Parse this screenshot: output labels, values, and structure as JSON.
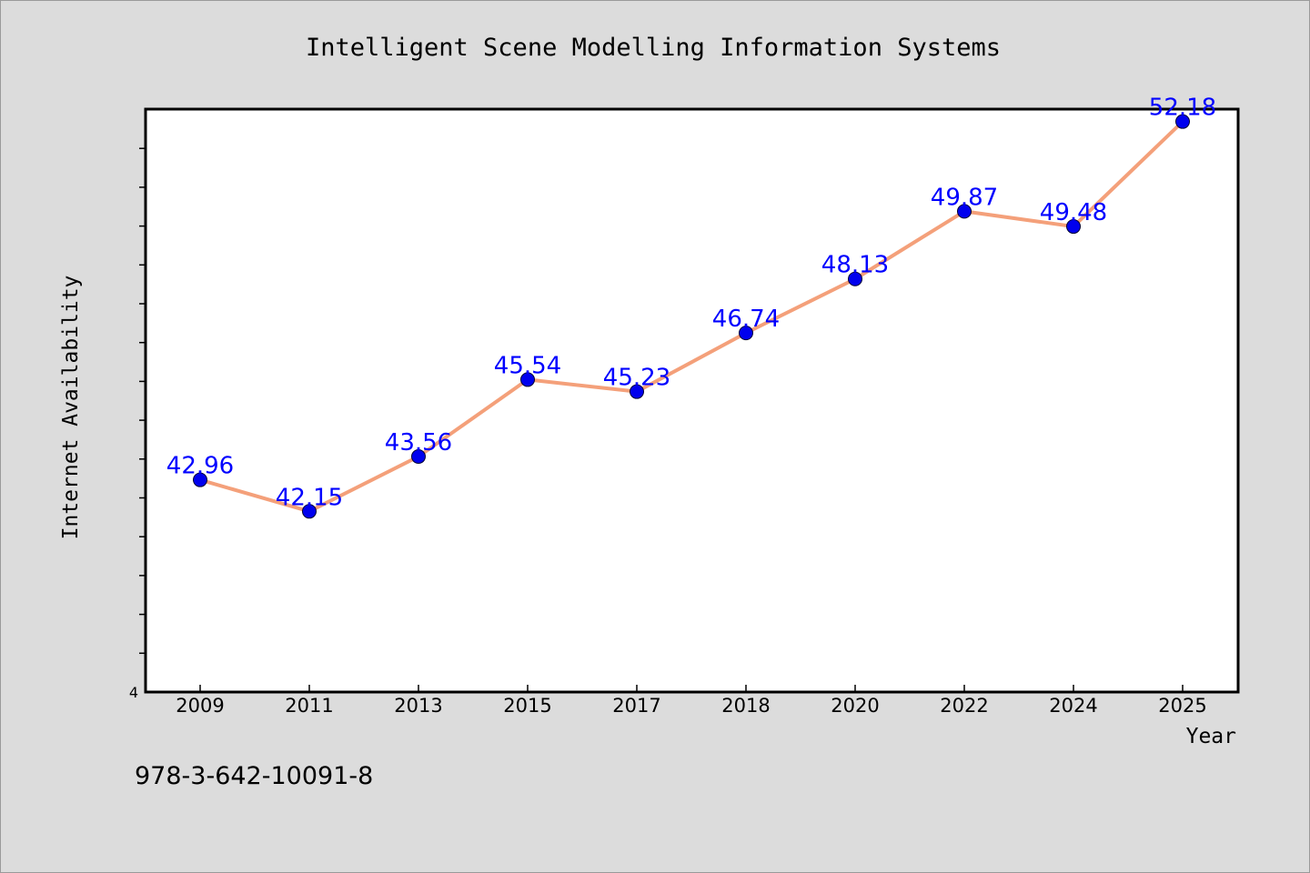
{
  "chart_data": {
    "type": "line",
    "title": "Intelligent Scene Modelling Information Systems",
    "xlabel": "Year",
    "ylabel": "Internet Availability",
    "categories": [
      "2009",
      "2011",
      "2013",
      "2015",
      "2017",
      "2018",
      "2020",
      "2022",
      "2024",
      "2025"
    ],
    "series": [
      {
        "values": [
          42.96,
          42.15,
          43.56,
          45.54,
          45.23,
          46.74,
          48.13,
          49.87,
          49.48,
          52.18
        ],
        "labels": [
          "42.96",
          "42.15",
          "43.56",
          "45.54",
          "45.23",
          "46.74",
          "48.13",
          "49.87",
          "49.48",
          "52.18"
        ],
        "line_color": "#f4a07a",
        "marker_color": "#0000ee",
        "label_color": "#0000ff"
      }
    ],
    "ylim": [
      37.5,
      52.5
    ],
    "y_tick_labels": [
      "4"
    ],
    "grid": false,
    "legend": "none"
  },
  "footer": {
    "isbn": "978-3-642-10091-8"
  },
  "colors": {
    "background": "#dcdcdc",
    "plot_area": "#ffffff",
    "axis": "#000000"
  }
}
